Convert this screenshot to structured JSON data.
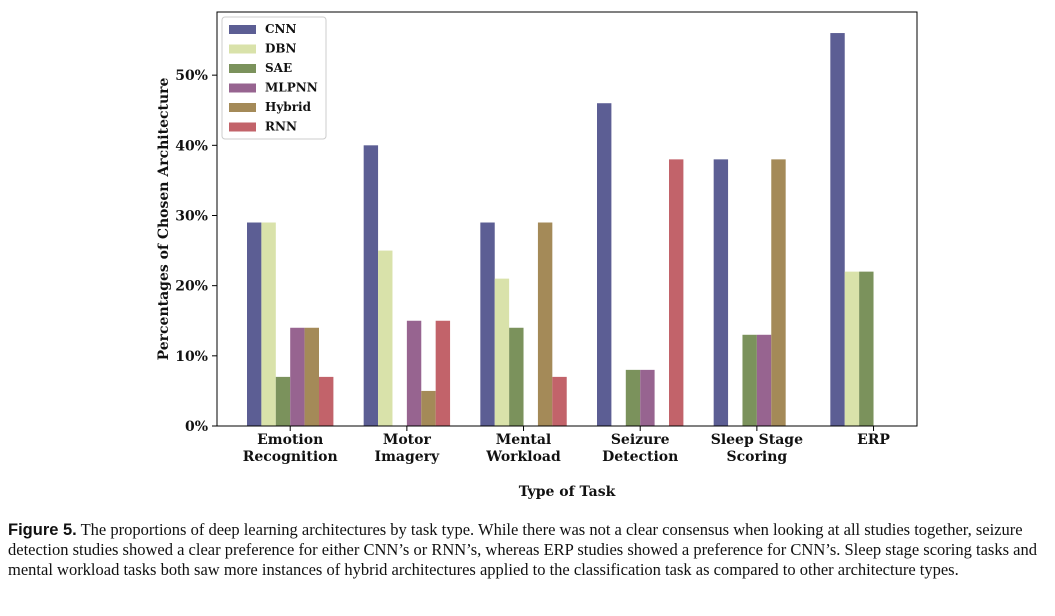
{
  "chart_data": {
    "type": "bar",
    "xlabel": "Type of Task",
    "ylabel": "Percentages of Chosen Architecture",
    "ylim": [
      0,
      0.59
    ],
    "yticks": [
      "0%",
      "10%",
      "20%",
      "30%",
      "40%",
      "50%"
    ],
    "categories": [
      [
        "Emotion",
        "Recognition"
      ],
      [
        "Motor",
        "Imagery"
      ],
      [
        "Mental",
        "Workload"
      ],
      [
        "Seizure",
        "Detection"
      ],
      [
        "Sleep Stage",
        "Scoring"
      ],
      [
        "ERP"
      ]
    ],
    "series": [
      {
        "name": "CNN",
        "color": "#5c5e94",
        "values": [
          0.29,
          0.4,
          0.29,
          0.46,
          0.38,
          0.56
        ]
      },
      {
        "name": "DBN",
        "color": "#d9e2aa",
        "values": [
          0.29,
          0.25,
          0.21,
          0.0,
          0.0,
          0.22
        ]
      },
      {
        "name": "SAE",
        "color": "#7b925c",
        "values": [
          0.07,
          0.0,
          0.14,
          0.08,
          0.13,
          0.22
        ]
      },
      {
        "name": "MLPNN",
        "color": "#976490",
        "values": [
          0.14,
          0.15,
          0.0,
          0.08,
          0.13,
          0.0
        ]
      },
      {
        "name": "Hybrid",
        "color": "#a48a58",
        "values": [
          0.14,
          0.05,
          0.29,
          0.0,
          0.38,
          0.0
        ]
      },
      {
        "name": "RNN",
        "color": "#c2636a",
        "values": [
          0.07,
          0.15,
          0.07,
          0.38,
          0.0,
          0.0
        ]
      }
    ],
    "legend_position": "top-left",
    "grid": false
  },
  "caption": {
    "label": "Figure 5.",
    "text": "The proportions of deep learning architectures by task type. While there was not a clear consensus when looking at all studies together, seizure detection studies showed a clear preference for either CNN’s or RNN’s, whereas ERP studies showed a preference for CNN’s. Sleep stage scoring tasks and mental workload tasks both saw more instances of hybrid architectures applied to the classification task as compared to other architecture types."
  }
}
